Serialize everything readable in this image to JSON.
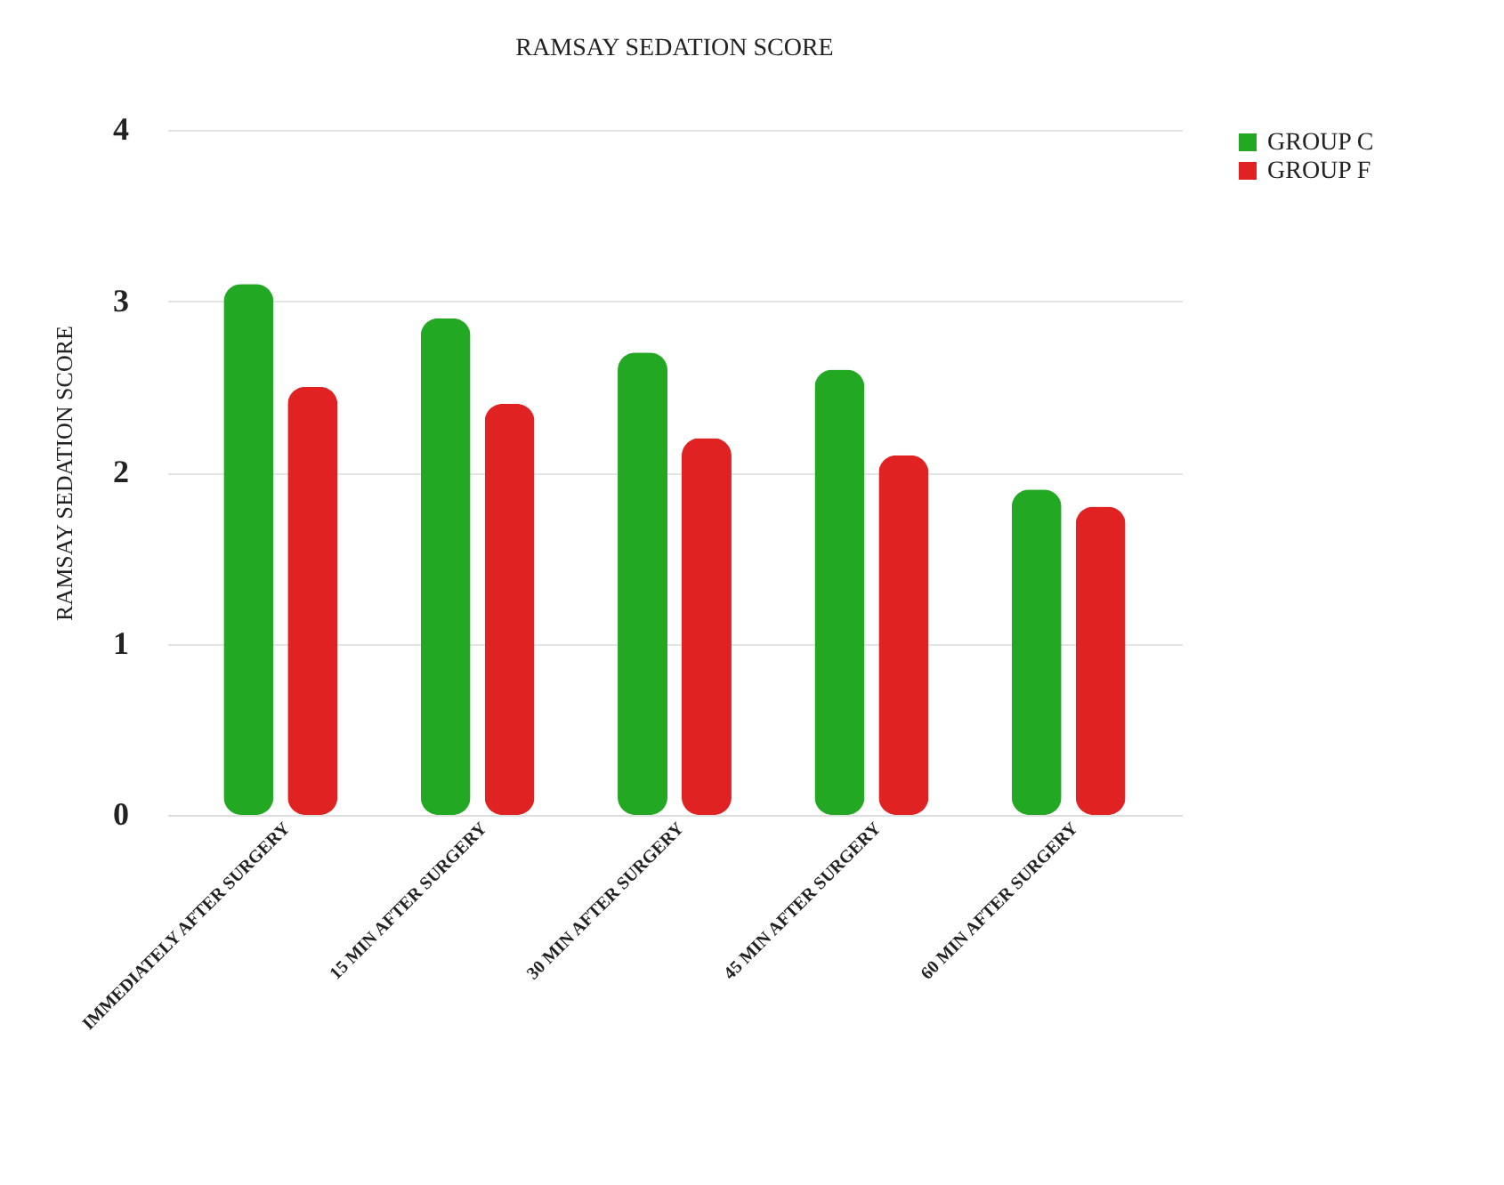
{
  "chart_data": {
    "type": "bar",
    "title": "RAMSAY SEDATION SCORE",
    "ylabel": "RAMSAY  SEDATION SCORE",
    "categories": [
      "IMMEDIATELY AFTER SURGERY",
      "15 MIN AFTER SURGERY",
      "30 MIN AFTER SURGERY",
      "45 MIN AFTER SURGERY",
      "60 MIN AFTER SURGERY"
    ],
    "series": [
      {
        "name": "GROUP C",
        "color": "#22a822",
        "values": [
          3.1,
          2.9,
          2.7,
          2.6,
          1.9
        ]
      },
      {
        "name": "GROUP F",
        "color": "#e02222",
        "values": [
          2.5,
          2.4,
          2.2,
          2.1,
          1.8
        ]
      }
    ],
    "ylim": [
      0,
      4
    ],
    "yticks": [
      0,
      1,
      2,
      3,
      4
    ],
    "grid": true,
    "legend": "right"
  }
}
